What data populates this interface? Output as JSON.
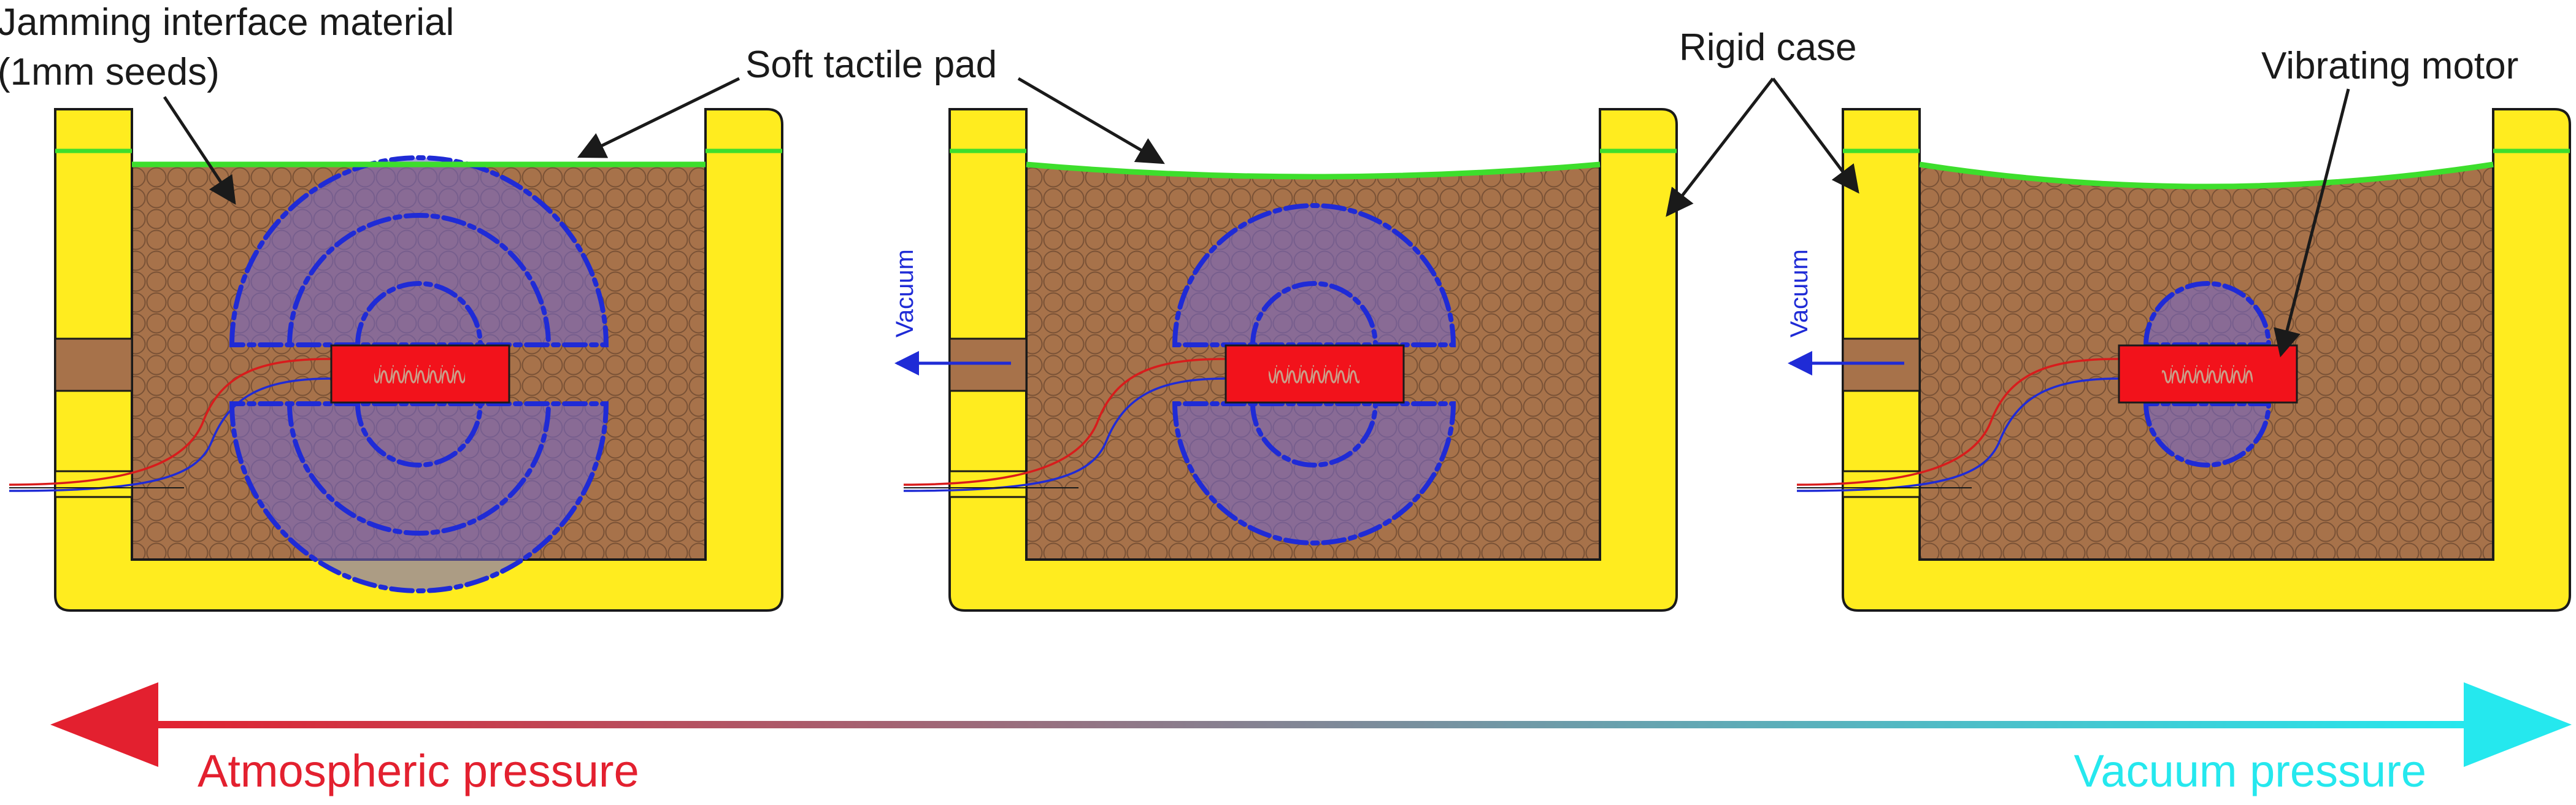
{
  "labels": {
    "jamming_line1": "Jamming interface material",
    "jamming_line2": "(1mm seeds)",
    "soft_pad": "Soft tactile pad",
    "rigid_case": "Rigid case",
    "vibrating_motor": "Vibrating motor"
  },
  "vacuum_label": "Vacuum",
  "pressure": {
    "atmospheric": "Atmospheric pressure",
    "vacuum": "Vacuum pressure"
  },
  "panels": [
    {
      "id": "atmospheric",
      "pressure_state": "atmospheric",
      "vacuum_applied": false,
      "pad_shape": "flat",
      "vibration_rings": 3
    },
    {
      "id": "partial-vacuum",
      "pressure_state": "partial vacuum",
      "vacuum_applied": true,
      "pad_shape": "slightly concave",
      "vibration_rings": 2
    },
    {
      "id": "full-vacuum",
      "pressure_state": "vacuum",
      "vacuum_applied": true,
      "pad_shape": "concave",
      "vibration_rings": 1
    }
  ],
  "colors": {
    "case": "#ffec1f",
    "seeds": "#a7724a",
    "seed_outline": "#7a5236",
    "pad": "#3dde2c",
    "vibration": "#1f2bd6",
    "vibration_fill": "#7468c8",
    "motor": "#f2121b",
    "atmospheric": "#e3202f",
    "vacuum": "#25e8ee",
    "wire_red": "#d81c1c",
    "wire_blue": "#1f2bd6"
  }
}
